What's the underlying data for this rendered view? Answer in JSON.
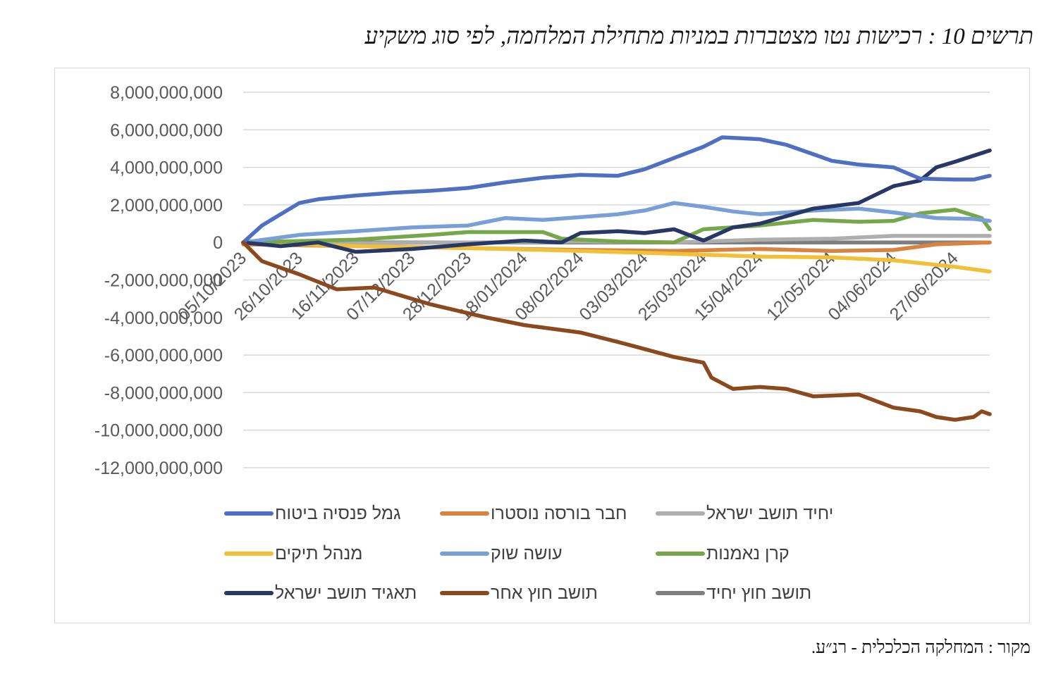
{
  "title": "תרשים 10 : רכישות נטו מצטברות במניות מתחילת המלחמה, לפי סוג משקיע",
  "source": "מקור : המחלקה הכלכלית - רנ״ע.",
  "chart_data": {
    "type": "line",
    "ylim": [
      -12000000000,
      8000000000
    ],
    "yticks": [
      8000000000,
      6000000000,
      4000000000,
      2000000000,
      0,
      -2000000000,
      -4000000000,
      -6000000000,
      -8000000000,
      -10000000000,
      -12000000000
    ],
    "ytick_labels": [
      "8,000,000,000",
      "6,000,000,000",
      "4,000,000,000",
      "2,000,000,000",
      "0",
      "-2,000,000,000",
      "-4,000,000,000",
      "-6,000,000,000",
      "-8,000,000,000",
      "-10,000,000,000",
      "-12,000,000,000"
    ],
    "xlim": [
      "2023-10-05",
      "2024-07-10"
    ],
    "xticks": [
      "05/10/2023",
      "26/10/2023",
      "16/11/2023",
      "07/12/2023",
      "28/12/2023",
      "18/01/2024",
      "08/02/2024",
      "03/03/2024",
      "25/03/2024",
      "15/04/2024",
      "12/05/2024",
      "04/06/2024",
      "27/06/2024"
    ],
    "xtick_dates": [
      "2023-10-05",
      "2023-10-26",
      "2023-11-16",
      "2023-12-07",
      "2023-12-28",
      "2024-01-18",
      "2024-02-08",
      "2024-03-03",
      "2024-03-25",
      "2024-04-15",
      "2024-05-12",
      "2024-06-04",
      "2024-06-27"
    ],
    "grid": true,
    "legend_position": "bottom",
    "series": [
      {
        "name": "גמל פנסיה ביטוח",
        "color": "#4F6FC2",
        "x": [
          "2023-10-05",
          "2023-10-12",
          "2023-10-19",
          "2023-10-26",
          "2023-11-02",
          "2023-11-16",
          "2023-11-30",
          "2023-12-14",
          "2023-12-28",
          "2024-01-11",
          "2024-01-25",
          "2024-02-08",
          "2024-02-22",
          "2024-03-03",
          "2024-03-14",
          "2024-03-25",
          "2024-04-01",
          "2024-04-08",
          "2024-04-15",
          "2024-04-25",
          "2024-05-05",
          "2024-05-12",
          "2024-05-22",
          "2024-06-04",
          "2024-06-14",
          "2024-06-27",
          "2024-07-04",
          "2024-07-10"
        ],
        "y": [
          0,
          900000000,
          1500000000,
          2100000000,
          2300000000,
          2500000000,
          2650000000,
          2750000000,
          2900000000,
          3200000000,
          3450000000,
          3600000000,
          3550000000,
          3900000000,
          4500000000,
          5100000000,
          5600000000,
          5550000000,
          5500000000,
          5200000000,
          4700000000,
          4350000000,
          4150000000,
          4000000000,
          3400000000,
          3350000000,
          3350000000,
          3550000000
        ]
      },
      {
        "name": "חבר בורסה נוסטרו",
        "color": "#D88340",
        "x": [
          "2023-10-05",
          "2023-11-16",
          "2023-12-28",
          "2024-02-08",
          "2024-03-14",
          "2024-04-15",
          "2024-05-12",
          "2024-06-04",
          "2024-06-20",
          "2024-07-10"
        ],
        "y": [
          -100000000,
          -200000000,
          -300000000,
          -400000000,
          -450000000,
          -350000000,
          -450000000,
          -400000000,
          -100000000,
          0
        ]
      },
      {
        "name": "יחיד תושב ישראל",
        "color": "#AEAEAE",
        "x": [
          "2023-10-05",
          "2023-11-16",
          "2023-12-28",
          "2024-02-08",
          "2024-03-14",
          "2024-04-15",
          "2024-05-12",
          "2024-06-04",
          "2024-07-10"
        ],
        "y": [
          0,
          -50000000,
          0,
          50000000,
          0,
          150000000,
          200000000,
          350000000,
          350000000
        ]
      },
      {
        "name": "מנהל תיקים",
        "color": "#F2C037",
        "x": [
          "2023-10-05",
          "2023-11-16",
          "2023-12-28",
          "2024-02-08",
          "2024-03-14",
          "2024-04-15",
          "2024-05-12",
          "2024-06-04",
          "2024-06-27",
          "2024-07-10"
        ],
        "y": [
          0,
          -200000000,
          -300000000,
          -450000000,
          -600000000,
          -750000000,
          -800000000,
          -950000000,
          -1300000000,
          -1550000000
        ]
      },
      {
        "name": "עושה שוק",
        "color": "#79A0D6",
        "x": [
          "2023-10-05",
          "2023-10-26",
          "2023-11-16",
          "2023-12-07",
          "2023-12-28",
          "2024-01-11",
          "2024-01-25",
          "2024-02-08",
          "2024-02-22",
          "2024-03-03",
          "2024-03-14",
          "2024-03-25",
          "2024-04-05",
          "2024-04-15",
          "2024-05-05",
          "2024-05-22",
          "2024-06-04",
          "2024-06-20",
          "2024-07-04",
          "2024-07-10"
        ],
        "y": [
          0,
          400000000,
          600000000,
          800000000,
          900000000,
          1300000000,
          1200000000,
          1350000000,
          1500000000,
          1700000000,
          2100000000,
          1900000000,
          1650000000,
          1500000000,
          1700000000,
          1800000000,
          1600000000,
          1300000000,
          1250000000,
          1150000000
        ]
      },
      {
        "name": "קרן נאמנות",
        "color": "#76A84B",
        "x": [
          "2023-10-05",
          "2023-11-16",
          "2023-12-14",
          "2023-12-28",
          "2024-01-25",
          "2024-02-01",
          "2024-02-22",
          "2024-03-14",
          "2024-03-25",
          "2024-04-15",
          "2024-05-05",
          "2024-05-22",
          "2024-06-04",
          "2024-06-14",
          "2024-06-27",
          "2024-07-07",
          "2024-07-10"
        ],
        "y": [
          0,
          150000000,
          400000000,
          550000000,
          550000000,
          200000000,
          50000000,
          0,
          700000000,
          900000000,
          1200000000,
          1100000000,
          1150000000,
          1550000000,
          1750000000,
          1300000000,
          700000000
        ]
      },
      {
        "name": "תאגיד תושב ישראל",
        "color": "#273866",
        "x": [
          "2023-10-05",
          "2023-10-19",
          "2023-11-02",
          "2023-11-16",
          "2023-12-07",
          "2023-12-28",
          "2024-01-18",
          "2024-02-01",
          "2024-02-08",
          "2024-02-22",
          "2024-03-03",
          "2024-03-14",
          "2024-03-25",
          "2024-04-05",
          "2024-04-15",
          "2024-05-05",
          "2024-05-22",
          "2024-06-04",
          "2024-06-14",
          "2024-06-20",
          "2024-06-27",
          "2024-07-10"
        ],
        "y": [
          0,
          -200000000,
          0,
          -500000000,
          -350000000,
          -100000000,
          100000000,
          0,
          500000000,
          600000000,
          500000000,
          700000000,
          100000000,
          800000000,
          1000000000,
          1800000000,
          2100000000,
          3000000000,
          3300000000,
          4000000000,
          4300000000,
          4900000000
        ]
      },
      {
        "name": "תושב חוץ אחר",
        "color": "#8B4A1E",
        "x": [
          "2023-10-05",
          "2023-10-12",
          "2023-10-26",
          "2023-11-09",
          "2023-11-23",
          "2023-12-14",
          "2024-01-04",
          "2024-01-18",
          "2024-02-08",
          "2024-02-22",
          "2024-03-14",
          "2024-03-25",
          "2024-03-28",
          "2024-04-05",
          "2024-04-15",
          "2024-04-25",
          "2024-05-05",
          "2024-05-22",
          "2024-06-04",
          "2024-06-14",
          "2024-06-20",
          "2024-06-27",
          "2024-07-04",
          "2024-07-07",
          "2024-07-10"
        ],
        "y": [
          0,
          -1000000000,
          -1700000000,
          -2500000000,
          -2400000000,
          -3300000000,
          -4000000000,
          -4400000000,
          -4800000000,
          -5300000000,
          -6100000000,
          -6400000000,
          -7200000000,
          -7800000000,
          -7700000000,
          -7800000000,
          -8200000000,
          -8100000000,
          -8800000000,
          -9000000000,
          -9300000000,
          -9450000000,
          -9300000000,
          -9000000000,
          -9150000000
        ]
      },
      {
        "name": "תושב חוץ יחיד",
        "color": "#7F7F7F",
        "x": [
          "2023-10-05",
          "2024-07-10"
        ],
        "y": [
          0,
          0
        ]
      }
    ]
  }
}
